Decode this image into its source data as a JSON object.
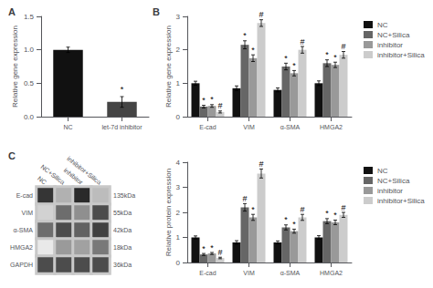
{
  "chart_data": [
    {
      "type": "bar",
      "label": "A",
      "categories": [
        "NC",
        "let-7d inhibitor"
      ],
      "values": [
        1.0,
        0.22
      ],
      "errors": [
        0.04,
        0.08
      ],
      "colors": [
        "#111111",
        "#444444"
      ],
      "ylabel": "Relative gene expression",
      "ylim": [
        0,
        1.5
      ],
      "yticks": [
        {
          "value": 0,
          "label": "0.0"
        },
        0.5,
        {
          "value": 1,
          "label": "1.0"
        },
        1.5
      ],
      "grid": false,
      "annotations": [
        {
          "text": "*",
          "category": "let-7d inhibitor",
          "y": 0.34
        }
      ]
    },
    {
      "type": "bar",
      "label": "B",
      "categories": [
        "E-cad",
        "VIM",
        "α-SMA",
        "HMGA2"
      ],
      "series": [
        {
          "name": "NC",
          "color": "#111111",
          "values": [
            1.0,
            0.85,
            0.8,
            1.0
          ],
          "errors": [
            0.06,
            0.07,
            0.06,
            0.07
          ]
        },
        {
          "name": "NC+Silica",
          "color": "#666666",
          "values": [
            0.3,
            2.15,
            1.5,
            1.6
          ],
          "errors": [
            0.04,
            0.12,
            0.1,
            0.1
          ]
        },
        {
          "name": "inhibitor",
          "color": "#999999",
          "values": [
            0.32,
            1.75,
            1.3,
            1.55
          ],
          "errors": [
            0.04,
            0.1,
            0.08,
            0.08
          ]
        },
        {
          "name": "inhibitor+Silica",
          "color": "#cccccc",
          "values": [
            0.14,
            2.8,
            2.0,
            1.85
          ],
          "errors": [
            0.03,
            0.1,
            0.1,
            0.1
          ]
        }
      ],
      "ylabel": "Relative gene expression",
      "ylim": [
        0,
        3
      ],
      "yticks": [
        0,
        1,
        2,
        3
      ],
      "grid": false,
      "legend": "upper right",
      "annotations": [
        {
          "text": "*",
          "category": "E-cad",
          "series": "NC+Silica",
          "y": 0.34
        },
        {
          "text": "*",
          "category": "E-cad",
          "series": "inhibitor",
          "y": 0.36
        },
        {
          "text": "#",
          "category": "E-cad",
          "series": "inhibitor+Silica",
          "y": 0.17
        },
        {
          "text": "*",
          "category": "VIM",
          "series": "NC+Silica",
          "y": 2.27
        },
        {
          "text": "*",
          "category": "VIM",
          "series": "inhibitor",
          "y": 1.85
        },
        {
          "text": "#",
          "category": "VIM",
          "series": "inhibitor+Silica",
          "y": 2.9
        },
        {
          "text": "*",
          "category": "α-SMA",
          "series": "NC+Silica",
          "y": 1.6
        },
        {
          "text": "*",
          "category": "α-SMA",
          "series": "inhibitor",
          "y": 1.38
        },
        {
          "text": "#",
          "category": "α-SMA",
          "series": "inhibitor+Silica",
          "y": 2.1
        },
        {
          "text": "*",
          "category": "HMGA2",
          "series": "NC+Silica",
          "y": 1.7
        },
        {
          "text": "*",
          "category": "HMGA2",
          "series": "inhibitor",
          "y": 1.63
        },
        {
          "text": "#",
          "category": "HMGA2",
          "series": "inhibitor+Silica",
          "y": 1.95
        }
      ]
    },
    {
      "type": "heatmap",
      "label": "C",
      "categories": [
        "NC",
        "NC+Silica",
        "inhibitor",
        "inhibitor+Silica"
      ],
      "rows": [
        "E-cad",
        "VIM",
        "α-SMA",
        "HMGA2",
        "GAPDH"
      ],
      "row_labels_right": [
        "135kDa",
        "55kDa",
        "42kDa",
        "18kDa",
        "36kDa"
      ],
      "values": [
        [
          0.9,
          0.35,
          0.95,
          0.3
        ],
        [
          0.2,
          0.65,
          0.5,
          0.8
        ],
        [
          0.65,
          0.8,
          0.7,
          0.85
        ],
        [
          0.1,
          0.45,
          0.42,
          0.6
        ],
        [
          0.8,
          0.8,
          0.8,
          0.8
        ]
      ]
    },
    {
      "type": "bar",
      "categories": [
        "E-cad",
        "VIM",
        "α-SMA",
        "HMGA2"
      ],
      "series": [
        {
          "name": "NC",
          "color": "#111111",
          "values": [
            1.0,
            0.8,
            0.8,
            1.0
          ],
          "errors": [
            0.06,
            0.07,
            0.06,
            0.07
          ]
        },
        {
          "name": "NC+Silica",
          "color": "#666666",
          "values": [
            0.32,
            2.2,
            1.4,
            1.65
          ],
          "errors": [
            0.04,
            0.15,
            0.1,
            0.1
          ]
        },
        {
          "name": "inhibitor",
          "color": "#999999",
          "values": [
            0.36,
            1.8,
            1.25,
            1.6
          ],
          "errors": [
            0.04,
            0.12,
            0.08,
            0.09
          ]
        },
        {
          "name": "inhibitor+Silica",
          "color": "#cccccc",
          "values": [
            0.18,
            3.55,
            1.8,
            1.9
          ],
          "errors": [
            0.03,
            0.18,
            0.12,
            0.1
          ]
        }
      ],
      "ylabel": "Relative protein expression",
      "ylim": [
        0,
        4
      ],
      "yticks": [
        0,
        1,
        2,
        3,
        4
      ],
      "grid": false,
      "legend": "upper right",
      "annotations": [
        {
          "text": "*",
          "category": "E-cad",
          "series": "NC+Silica",
          "y": 0.36
        },
        {
          "text": "*",
          "category": "E-cad",
          "series": "inhibitor",
          "y": 0.4
        },
        {
          "text": "#",
          "category": "E-cad",
          "series": "inhibitor+Silica",
          "y": 0.21
        },
        {
          "text": "#",
          "category": "VIM",
          "series": "NC+Silica",
          "y": 2.35
        },
        {
          "text": "*",
          "category": "VIM",
          "series": "inhibitor",
          "y": 1.92
        },
        {
          "text": "#",
          "category": "VIM",
          "series": "inhibitor+Silica",
          "y": 3.73
        },
        {
          "text": "*",
          "category": "α-SMA",
          "series": "NC+Silica",
          "y": 1.5
        },
        {
          "text": "*",
          "category": "α-SMA",
          "series": "inhibitor",
          "y": 1.33
        },
        {
          "text": "#",
          "category": "α-SMA",
          "series": "inhibitor+Silica",
          "y": 1.92
        },
        {
          "text": "*",
          "category": "HMGA2",
          "series": "NC+Silica",
          "y": 1.75
        },
        {
          "text": "*",
          "category": "HMGA2",
          "series": "inhibitor",
          "y": 1.69
        },
        {
          "text": "#",
          "category": "HMGA2",
          "series": "inhibitor+Silica",
          "y": 2.0
        }
      ]
    }
  ]
}
